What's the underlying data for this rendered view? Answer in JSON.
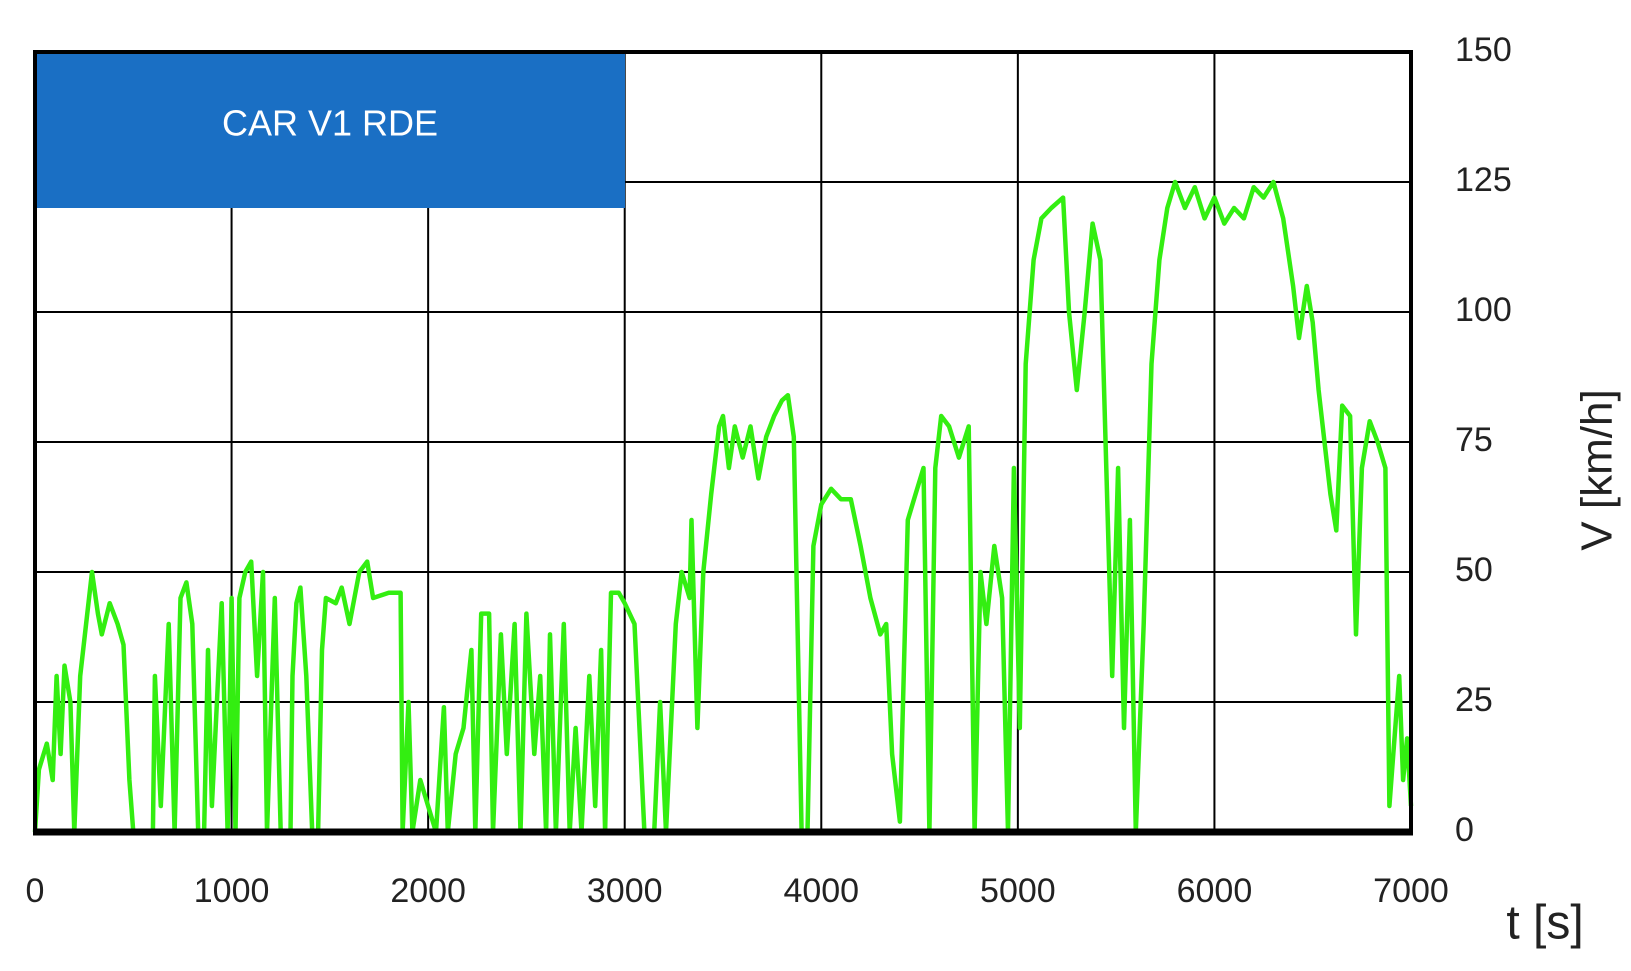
{
  "chart_data": {
    "type": "line",
    "annotation": "CAR V1 RDE",
    "xlabel": "t [s]",
    "ylabel": "V [km/h]",
    "color": "#33ee11",
    "grid": true,
    "xlim": [
      0,
      7000
    ],
    "xticks": [
      0,
      1000,
      2000,
      3000,
      4000,
      5000,
      6000,
      7000
    ],
    "ylim": [
      0,
      150
    ],
    "yticks": [
      0,
      25,
      50,
      75,
      100,
      125,
      150
    ],
    "x": [
      0,
      20,
      60,
      90,
      110,
      130,
      150,
      180,
      200,
      230,
      260,
      290,
      320,
      340,
      380,
      420,
      450,
      480,
      500,
      600,
      610,
      640,
      680,
      710,
      740,
      770,
      800,
      830,
      860,
      880,
      900,
      950,
      980,
      1000,
      1020,
      1040,
      1070,
      1100,
      1130,
      1160,
      1180,
      1220,
      1250,
      1300,
      1310,
      1330,
      1350,
      1380,
      1410,
      1440,
      1460,
      1480,
      1530,
      1560,
      1600,
      1650,
      1690,
      1720,
      1800,
      1860,
      1870,
      1900,
      1920,
      1960,
      2000,
      2040,
      2080,
      2100,
      2140,
      2180,
      2220,
      2240,
      2270,
      2310,
      2330,
      2370,
      2400,
      2440,
      2470,
      2500,
      2540,
      2570,
      2600,
      2620,
      2650,
      2690,
      2720,
      2750,
      2780,
      2820,
      2850,
      2880,
      2900,
      2930,
      2970,
      3000,
      3050,
      3100,
      3150,
      3180,
      3210,
      3260,
      3290,
      3330,
      3340,
      3370,
      3400,
      3440,
      3480,
      3500,
      3530,
      3560,
      3600,
      3640,
      3680,
      3720,
      3760,
      3800,
      3830,
      3860,
      3900,
      3930,
      3960,
      4000,
      4050,
      4100,
      4150,
      4200,
      4250,
      4300,
      4330,
      4360,
      4400,
      4440,
      4480,
      4520,
      4550,
      4580,
      4610,
      4650,
      4700,
      4750,
      4780,
      4810,
      4840,
      4880,
      4920,
      4950,
      4980,
      5010,
      5040,
      5080,
      5120,
      5170,
      5230,
      5260,
      5300,
      5340,
      5380,
      5420,
      5450,
      5480,
      5510,
      5540,
      5570,
      5600,
      5640,
      5680,
      5720,
      5760,
      5800,
      5850,
      5900,
      5950,
      6000,
      6050,
      6100,
      6150,
      6200,
      6250,
      6300,
      6350,
      6400,
      6430,
      6470,
      6500,
      6530,
      6560,
      6590,
      6620,
      6650,
      6690,
      6720,
      6750,
      6790,
      6830,
      6870,
      6890,
      6910,
      6940,
      6960,
      6980,
      7000
    ],
    "values": [
      0,
      12,
      17,
      10,
      30,
      15,
      32,
      25,
      0,
      30,
      40,
      50,
      42,
      38,
      44,
      40,
      36,
      10,
      0,
      0,
      30,
      5,
      40,
      0,
      45,
      48,
      40,
      0,
      0,
      35,
      5,
      44,
      0,
      45,
      0,
      45,
      50,
      52,
      30,
      50,
      0,
      45,
      0,
      0,
      30,
      44,
      47,
      30,
      0,
      0,
      35,
      45,
      44,
      47,
      40,
      50,
      52,
      45,
      46,
      46,
      0,
      25,
      0,
      10,
      5,
      0,
      24,
      0,
      15,
      20,
      35,
      0,
      42,
      42,
      0,
      38,
      15,
      40,
      0,
      42,
      15,
      30,
      0,
      38,
      0,
      40,
      0,
      20,
      0,
      30,
      5,
      35,
      0,
      46,
      46,
      44,
      40,
      0,
      0,
      25,
      0,
      40,
      50,
      45,
      60,
      20,
      50,
      65,
      78,
      80,
      70,
      78,
      72,
      78,
      68,
      76,
      80,
      83,
      84,
      76,
      0,
      0,
      55,
      63,
      66,
      64,
      64,
      55,
      45,
      38,
      40,
      15,
      2,
      60,
      65,
      70,
      0,
      70,
      80,
      78,
      72,
      78,
      0,
      50,
      40,
      55,
      45,
      0,
      70,
      20,
      90,
      110,
      118,
      120,
      122,
      100,
      85,
      100,
      117,
      110,
      70,
      30,
      70,
      20,
      60,
      0,
      40,
      90,
      110,
      120,
      125,
      120,
      124,
      118,
      122,
      117,
      120,
      118,
      124,
      122,
      125,
      118,
      105,
      95,
      105,
      98,
      85,
      75,
      65,
      58,
      82,
      80,
      38,
      70,
      79,
      75,
      70,
      5,
      15,
      30,
      10,
      18,
      5
    ]
  }
}
